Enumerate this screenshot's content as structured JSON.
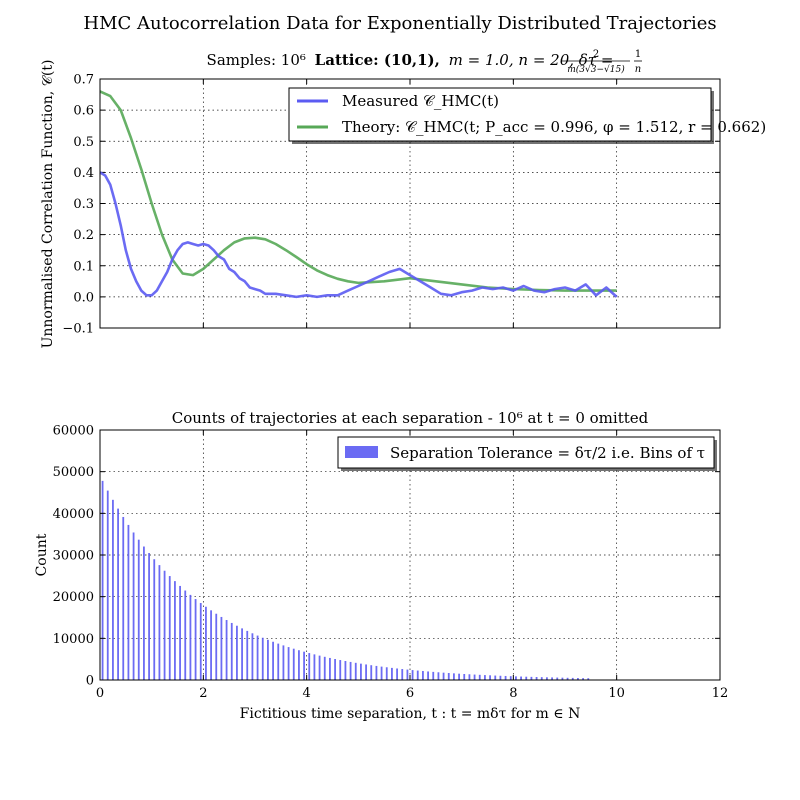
{
  "figure": {
    "suptitle": "HMC Autocorrelation Data for Exponentially Distributed Trajectories"
  },
  "chart_data": [
    {
      "type": "line",
      "title": "Samples: 10⁶ Lattice: (10,1), m = 1.0, n = 20, δτ = 2/(m(3√3−√15)) · 1/n",
      "title_parts": {
        "samples": "Samples: 10⁶",
        "lattice": "Lattice: (10,1),",
        "params": "m = 1.0, n = 20, δτ =",
        "frac_num": "2",
        "frac_den": "m(3√3−√15)",
        "frac2_num": "1",
        "frac2_den": "n"
      },
      "xlabel": "",
      "ylabel": "Unnormalised Correlation Function, 𝒞(t)",
      "xlim": [
        0,
        12
      ],
      "ylim": [
        -0.1,
        0.7
      ],
      "yticks": [
        "−0.1",
        "0.0",
        "0.1",
        "0.2",
        "0.3",
        "0.4",
        "0.5",
        "0.6",
        "0.7"
      ],
      "grid": true,
      "legend_position": "top-right",
      "series": [
        {
          "name": "Measured 𝒞_HMC(t)",
          "color": "#5b5bf2",
          "x": [
            0,
            0.1,
            0.2,
            0.3,
            0.4,
            0.5,
            0.6,
            0.7,
            0.8,
            0.9,
            1.0,
            1.1,
            1.2,
            1.3,
            1.4,
            1.5,
            1.6,
            1.7,
            1.8,
            1.9,
            2.0,
            2.1,
            2.2,
            2.3,
            2.4,
            2.5,
            2.6,
            2.7,
            2.8,
            2.9,
            3.0,
            3.1,
            3.2,
            3.4,
            3.6,
            3.8,
            4.0,
            4.2,
            4.4,
            4.6,
            4.8,
            5.0,
            5.2,
            5.4,
            5.6,
            5.8,
            6.0,
            6.2,
            6.4,
            6.6,
            6.8,
            7.0,
            7.2,
            7.4,
            7.6,
            7.8,
            8.0,
            8.2,
            8.4,
            8.6,
            8.8,
            9.0,
            9.2,
            9.4,
            9.6,
            9.8,
            10.0
          ],
          "y": [
            0.4,
            0.39,
            0.36,
            0.3,
            0.23,
            0.15,
            0.09,
            0.05,
            0.02,
            0.005,
            0.005,
            0.02,
            0.05,
            0.08,
            0.12,
            0.15,
            0.17,
            0.175,
            0.17,
            0.165,
            0.17,
            0.165,
            0.15,
            0.13,
            0.12,
            0.09,
            0.08,
            0.06,
            0.05,
            0.03,
            0.025,
            0.02,
            0.01,
            0.01,
            0.005,
            0.0,
            0.005,
            0.0,
            0.005,
            0.005,
            0.02,
            0.035,
            0.05,
            0.065,
            0.08,
            0.09,
            0.07,
            0.05,
            0.03,
            0.01,
            0.005,
            0.015,
            0.02,
            0.03,
            0.025,
            0.03,
            0.02,
            0.035,
            0.02,
            0.015,
            0.025,
            0.03,
            0.02,
            0.04,
            0.005,
            0.03,
            0.0
          ]
        },
        {
          "name": "Theory: 𝒞_HMC(t; P_acc = 0.996, φ = 1.512, r = 0.662)",
          "color": "#57a857",
          "x": [
            0,
            0.2,
            0.4,
            0.6,
            0.8,
            1.0,
            1.2,
            1.4,
            1.6,
            1.8,
            2.0,
            2.2,
            2.4,
            2.6,
            2.8,
            3.0,
            3.2,
            3.4,
            3.6,
            3.8,
            4.0,
            4.2,
            4.4,
            4.6,
            4.8,
            5.0,
            5.5,
            6.0,
            6.5,
            7.0,
            7.5,
            8.0,
            8.5,
            9.0,
            9.5,
            10.0
          ],
          "y": [
            0.66,
            0.645,
            0.6,
            0.51,
            0.41,
            0.3,
            0.2,
            0.12,
            0.075,
            0.07,
            0.09,
            0.12,
            0.15,
            0.175,
            0.188,
            0.19,
            0.185,
            0.17,
            0.15,
            0.128,
            0.105,
            0.085,
            0.07,
            0.058,
            0.05,
            0.045,
            0.05,
            0.06,
            0.05,
            0.04,
            0.03,
            0.025,
            0.022,
            0.02,
            0.02,
            0.02
          ]
        }
      ]
    },
    {
      "type": "bar",
      "title": "Counts of trajectories at each separation - 10⁶ at t = 0 omitted",
      "xlabel": "Fictitious time separation, t : t = mδτ for m ∈ N",
      "ylabel": "Count",
      "xlim": [
        0,
        12
      ],
      "ylim": [
        0,
        60000
      ],
      "xticks": [
        "0",
        "2",
        "4",
        "6",
        "8",
        "10",
        "12"
      ],
      "yticks": [
        "0",
        "10000",
        "20000",
        "30000",
        "40000",
        "50000",
        "60000"
      ],
      "grid": true,
      "legend_position": "top-right",
      "bin_width": 0.1,
      "bin_start": 0.05,
      "bin_end": 9.45,
      "decay_amplitude": 49000,
      "decay_rate": 0.5,
      "series": [
        {
          "name": "Separation Tolerance = δτ/2 i.e. Bins of τ",
          "color": "#5b5bf2"
        }
      ]
    }
  ]
}
